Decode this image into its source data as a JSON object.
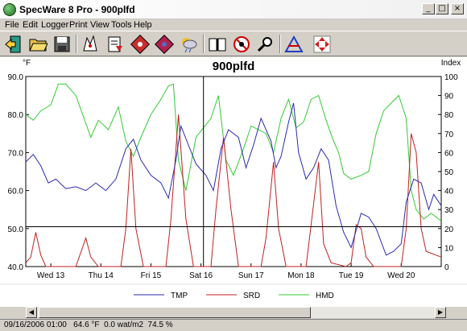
{
  "window": {
    "title": "SpecWare 8 Pro - 900plfd",
    "minimize": "_",
    "maximize": "□",
    "close": "×"
  },
  "menu": [
    "File",
    "Edit",
    "Logger",
    "Print",
    "View",
    "Tools",
    "Help"
  ],
  "toolbar": {
    "buttons": [
      "exit-icon",
      "open-folder-icon",
      "save-disk-icon",
      "logger-icon",
      "download-icon",
      "plant-icon",
      "plant-alt-icon",
      "weather-icon",
      "book-icon",
      "no-spray-icon",
      "zoom-icon",
      "triangle-icon",
      "expand-icon"
    ]
  },
  "status": {
    "text": "09/16/2006 01:00   64.6 °F  0.0 wat/m2  74.5 %"
  },
  "scrollbar": {
    "left": "◀",
    "right": "▶"
  },
  "colors": {
    "TMP": "#2b2bb0",
    "SRD": "#c02020",
    "HMD": "#33cc33"
  },
  "chart_data": {
    "type": "line",
    "title": "900plfd",
    "left_axis_label": "°F",
    "right_axis_label": "Index",
    "left_range": [
      40,
      90
    ],
    "left_ticks": [
      "90.0",
      "80.0",
      "70.0",
      "60.0",
      "50.0",
      "40.0"
    ],
    "right_range": [
      0,
      100
    ],
    "right_ticks": [
      "100",
      "90",
      "80",
      "70",
      "60",
      "50",
      "40",
      "30",
      "20",
      "10",
      "0"
    ],
    "x_range": [
      0,
      8.3
    ],
    "x_ticks": [
      {
        "label": "Wed 13",
        "x": 0.5
      },
      {
        "label": "Thu 14",
        "x": 1.5
      },
      {
        "label": "Fri 15",
        "x": 2.5
      },
      {
        "label": "Sat 16",
        "x": 3.5
      },
      {
        "label": "Sun 17",
        "x": 4.5
      },
      {
        "label": "Mon 18",
        "x": 5.5
      },
      {
        "label": "Tue 19",
        "x": 6.5
      },
      {
        "label": "Wed 20",
        "x": 7.5
      }
    ],
    "cursor": {
      "x": 3.55,
      "y_index": 21
    },
    "series": [
      {
        "name": "TMP",
        "axis": "left",
        "points": [
          [
            0,
            67.5
          ],
          [
            0.15,
            69.5
          ],
          [
            0.3,
            66.5
          ],
          [
            0.45,
            62
          ],
          [
            0.6,
            63
          ],
          [
            0.8,
            60.5
          ],
          [
            1.0,
            61
          ],
          [
            1.2,
            60
          ],
          [
            1.4,
            62
          ],
          [
            1.6,
            60
          ],
          [
            1.8,
            63
          ],
          [
            2.0,
            71
          ],
          [
            2.15,
            73.5
          ],
          [
            2.3,
            68
          ],
          [
            2.5,
            64
          ],
          [
            2.7,
            62
          ],
          [
            2.85,
            58
          ],
          [
            3.0,
            68
          ],
          [
            3.1,
            77
          ],
          [
            3.25,
            72
          ],
          [
            3.4,
            67
          ],
          [
            3.6,
            64
          ],
          [
            3.75,
            60
          ],
          [
            3.9,
            71
          ],
          [
            4.05,
            76
          ],
          [
            4.25,
            74
          ],
          [
            4.4,
            66
          ],
          [
            4.55,
            72
          ],
          [
            4.7,
            79
          ],
          [
            4.9,
            73
          ],
          [
            5.0,
            66
          ],
          [
            5.1,
            69
          ],
          [
            5.25,
            78
          ],
          [
            5.35,
            83
          ],
          [
            5.45,
            70
          ],
          [
            5.6,
            63
          ],
          [
            5.75,
            66
          ],
          [
            5.9,
            71
          ],
          [
            6.05,
            68
          ],
          [
            6.2,
            56
          ],
          [
            6.35,
            49
          ],
          [
            6.5,
            45
          ],
          [
            6.7,
            54
          ],
          [
            6.85,
            53
          ],
          [
            7.0,
            50
          ],
          [
            7.2,
            43
          ],
          [
            7.35,
            44
          ],
          [
            7.5,
            46
          ],
          [
            7.6,
            57
          ],
          [
            7.75,
            63
          ],
          [
            7.9,
            62
          ],
          [
            8.05,
            55
          ],
          [
            8.15,
            59
          ],
          [
            8.3,
            56
          ]
        ]
      },
      {
        "name": "SRD",
        "axis": "right",
        "points": [
          [
            0,
            2
          ],
          [
            0.1,
            5
          ],
          [
            0.2,
            18
          ],
          [
            0.3,
            6
          ],
          [
            0.4,
            0
          ],
          [
            1.0,
            0
          ],
          [
            1.2,
            15
          ],
          [
            1.3,
            5
          ],
          [
            1.45,
            0
          ],
          [
            1.9,
            0
          ],
          [
            2.0,
            20
          ],
          [
            2.1,
            62
          ],
          [
            2.2,
            20
          ],
          [
            2.35,
            0
          ],
          [
            2.8,
            0
          ],
          [
            2.9,
            25
          ],
          [
            3.05,
            80
          ],
          [
            3.2,
            25
          ],
          [
            3.35,
            0
          ],
          [
            3.7,
            0
          ],
          [
            3.8,
            30
          ],
          [
            3.95,
            68
          ],
          [
            4.1,
            30
          ],
          [
            4.25,
            0
          ],
          [
            4.7,
            0
          ],
          [
            4.8,
            15
          ],
          [
            4.95,
            55
          ],
          [
            5.05,
            20
          ],
          [
            5.2,
            0
          ],
          [
            5.6,
            0
          ],
          [
            5.7,
            22
          ],
          [
            5.85,
            55
          ],
          [
            5.95,
            12
          ],
          [
            6.1,
            2
          ],
          [
            6.4,
            0
          ],
          [
            6.5,
            2
          ],
          [
            6.6,
            22
          ],
          [
            6.7,
            20
          ],
          [
            6.8,
            5
          ],
          [
            6.95,
            0
          ],
          [
            7.5,
            0
          ],
          [
            7.6,
            20
          ],
          [
            7.7,
            70
          ],
          [
            7.8,
            60
          ],
          [
            7.9,
            20
          ],
          [
            8.0,
            8
          ],
          [
            8.3,
            5
          ]
        ]
      },
      {
        "name": "HMD",
        "axis": "right",
        "points": [
          [
            0,
            80
          ],
          [
            0.15,
            77
          ],
          [
            0.3,
            82
          ],
          [
            0.5,
            85
          ],
          [
            0.65,
            96
          ],
          [
            0.8,
            96
          ],
          [
            1.0,
            90
          ],
          [
            1.15,
            79
          ],
          [
            1.3,
            68
          ],
          [
            1.45,
            77
          ],
          [
            1.65,
            72
          ],
          [
            1.85,
            84
          ],
          [
            2.0,
            66
          ],
          [
            2.15,
            58
          ],
          [
            2.3,
            68
          ],
          [
            2.5,
            80
          ],
          [
            2.7,
            88
          ],
          [
            2.85,
            95
          ],
          [
            2.95,
            96
          ],
          [
            3.05,
            56
          ],
          [
            3.2,
            40
          ],
          [
            3.4,
            68
          ],
          [
            3.55,
            73
          ],
          [
            3.7,
            78
          ],
          [
            3.85,
            90
          ],
          [
            4.0,
            56
          ],
          [
            4.15,
            48
          ],
          [
            4.35,
            62
          ],
          [
            4.5,
            74
          ],
          [
            4.65,
            72
          ],
          [
            4.8,
            70
          ],
          [
            4.95,
            60
          ],
          [
            5.1,
            78
          ],
          [
            5.25,
            88
          ],
          [
            5.4,
            73
          ],
          [
            5.55,
            76
          ],
          [
            5.7,
            88
          ],
          [
            5.85,
            90
          ],
          [
            6.0,
            77
          ],
          [
            6.15,
            66
          ],
          [
            6.25,
            60
          ],
          [
            6.35,
            49
          ],
          [
            6.5,
            46
          ],
          [
            6.7,
            48
          ],
          [
            6.85,
            50
          ],
          [
            7.0,
            70
          ],
          [
            7.15,
            82
          ],
          [
            7.3,
            86
          ],
          [
            7.45,
            90
          ],
          [
            7.6,
            78
          ],
          [
            7.7,
            40
          ],
          [
            7.8,
            30
          ],
          [
            7.95,
            25
          ],
          [
            8.1,
            28
          ],
          [
            8.3,
            24
          ]
        ]
      }
    ]
  }
}
